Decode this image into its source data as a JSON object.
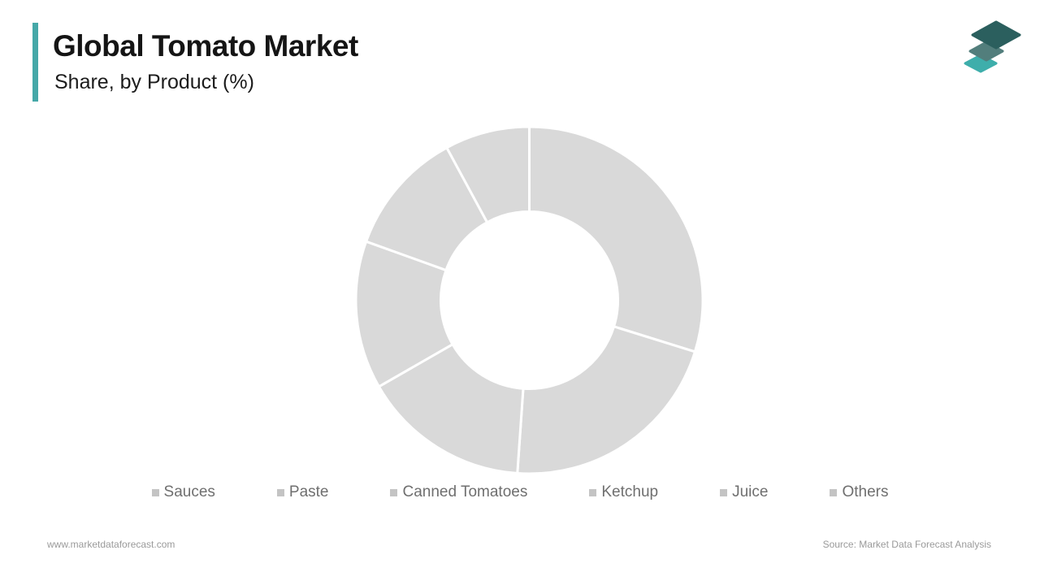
{
  "header": {
    "title": "Global Tomato Market",
    "subtitle": "Share, by Product (%)",
    "accent_color": "#45A8A8",
    "logo": {
      "icon": "stacked-layers-logo",
      "colors": [
        "#3EAEAB",
        "#527E7C",
        "#2B5F5E"
      ]
    }
  },
  "chart_data": {
    "type": "pie",
    "variant": "donut",
    "title": "Global Tomato Market Share, by Product (%)",
    "labels": [
      "Sauces",
      "Paste",
      "Canned Tomatoes",
      "Ketchup",
      "Juice",
      "Others"
    ],
    "values": [
      29.8,
      21.3,
      15.6,
      13.8,
      11.6,
      7.9
    ],
    "unit": "%",
    "start_angle_deg": 0,
    "direction": "clockwise",
    "inner_radius_ratio": 0.51,
    "slice_color": "#D9D9D9",
    "separator_color": "#FFFFFF",
    "legend_position": "bottom",
    "legend_text_color": "#6F6F6F",
    "legend_marker_color": "#C4C4C4"
  },
  "footer": {
    "website": "www.marketdataforecast.com",
    "source": "Source: Market Data Forecast Analysis"
  }
}
